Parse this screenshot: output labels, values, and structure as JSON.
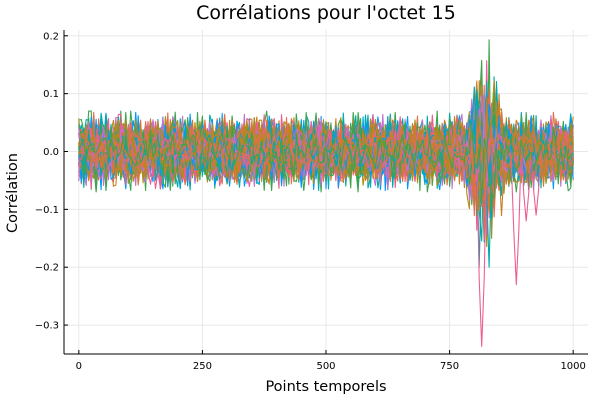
{
  "chart_data": {
    "type": "line",
    "title": "Corrélations pour l'octet 15",
    "xlabel": "Points temporels",
    "ylabel": "Corrélation",
    "xlim": [
      -30,
      1030
    ],
    "ylim": [
      -0.35,
      0.21
    ],
    "xticks": [
      0,
      250,
      500,
      750,
      1000
    ],
    "xtick_labels": [
      "0",
      "250",
      "500",
      "750",
      "1000"
    ],
    "yticks": [
      0.2,
      0.1,
      0.0,
      -0.1,
      -0.2,
      -0.3
    ],
    "ytick_labels": [
      "0.2",
      "0.1",
      "0.0",
      "−0.1",
      "−0.2",
      "−0.3"
    ],
    "grid": true,
    "legend": "none",
    "series_count": 256,
    "series_colors": [
      "#e26f46",
      "#3da44d",
      "#009afa",
      "#c271d2",
      "#ac8d18",
      "#00a9ad",
      "#ed5e93",
      "#c68125"
    ],
    "x_range": [
      0,
      1000
    ],
    "baseline_band": [
      -0.07,
      0.07
    ],
    "peak_region": [
      780,
      860
    ],
    "max_value": 0.193,
    "min_value": -0.337,
    "min_at_x": 815,
    "secondary_dips": [
      {
        "x": 885,
        "value": -0.23
      },
      {
        "x": 905,
        "value": -0.12
      },
      {
        "x": 925,
        "value": -0.11
      }
    ]
  }
}
